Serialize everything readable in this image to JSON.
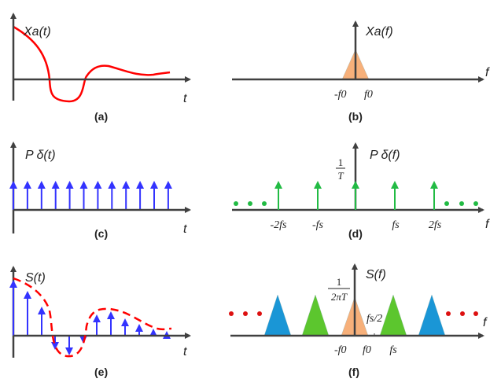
{
  "colors": {
    "axis": "#404040",
    "signal": "#ff0000",
    "impulse_time": "#3333ff",
    "impulse_freq": "#22bb44",
    "baseband": "#f7b07a",
    "alias_green": "#5cc62e",
    "alias_blue": "#1a96d6",
    "dots_red": "#dd1111"
  },
  "panels": {
    "a": {
      "caption": "(a)",
      "ylabel": "Xa(t)",
      "xlabel": "t"
    },
    "b": {
      "caption": "(b)",
      "ylabel": "Xa(f)",
      "xlabel": "f",
      "ticks": [
        "-f0",
        "f0"
      ]
    },
    "c": {
      "caption": "(c)",
      "ylabel": "P δ(t)",
      "xlabel": "t"
    },
    "d": {
      "caption": "(d)",
      "ylabel": "P δ(f)",
      "xlabel": "f",
      "amplitude_num": "1",
      "amplitude_den": "T",
      "ticks": [
        "-2fs",
        "-fs",
        "fs",
        "2fs"
      ]
    },
    "e": {
      "caption": "(e)",
      "ylabel": "S(t)",
      "xlabel": "t"
    },
    "f": {
      "caption": "(f)",
      "ylabel": "S(f)",
      "xlabel": "f",
      "amplitude_num": "1",
      "amplitude_den": "2πT",
      "half_rate": "fs/2",
      "ticks": [
        "-f0",
        "f0",
        "fs"
      ]
    }
  }
}
